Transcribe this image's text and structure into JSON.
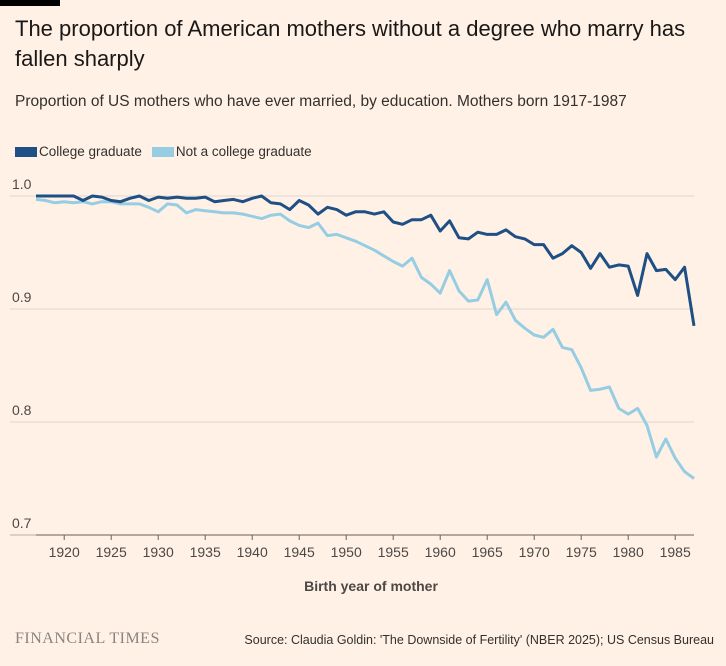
{
  "header": {
    "title": "The proportion of American mothers without a degree who marry has fallen sharply",
    "subtitle": "Proportion of US mothers who have ever married, by education. Mothers born 1917-1987"
  },
  "footer": {
    "brand": "FINANCIAL TIMES",
    "source": "Source: Claudia Goldin: 'The Downside of Fertility' (NBER 2025); US Census Bureau"
  },
  "colors": {
    "background": "#FFF1E5",
    "college": "#1E4F85",
    "noncollege": "#96CDE3",
    "grid": "#E0D6CF"
  },
  "chart_data": {
    "type": "line",
    "title": "The proportion of American mothers without a degree who marry has fallen sharply",
    "xlabel": "Birth year of mother",
    "ylabel": "",
    "xlim": [
      1917,
      1987
    ],
    "ylim": [
      0.7,
      1.0
    ],
    "xticks": [
      1920,
      1925,
      1930,
      1935,
      1940,
      1945,
      1950,
      1955,
      1960,
      1965,
      1970,
      1975,
      1980,
      1985
    ],
    "yticks": [
      0.7,
      0.8,
      0.9,
      1.0
    ],
    "ytick_labels": [
      "0.7",
      "0.8",
      "0.9",
      "1.0"
    ],
    "x": [
      1917,
      1918,
      1919,
      1920,
      1921,
      1922,
      1923,
      1924,
      1925,
      1926,
      1927,
      1928,
      1929,
      1930,
      1931,
      1932,
      1933,
      1934,
      1935,
      1936,
      1937,
      1938,
      1939,
      1940,
      1941,
      1942,
      1943,
      1944,
      1945,
      1946,
      1947,
      1948,
      1949,
      1950,
      1951,
      1952,
      1953,
      1954,
      1955,
      1956,
      1957,
      1958,
      1959,
      1960,
      1961,
      1962,
      1963,
      1964,
      1965,
      1966,
      1967,
      1968,
      1969,
      1970,
      1971,
      1972,
      1973,
      1974,
      1975,
      1976,
      1977,
      1978,
      1979,
      1980,
      1981,
      1982,
      1983,
      1984,
      1985,
      1986,
      1987
    ],
    "series": [
      {
        "name": "College graduate",
        "color": "#1E4F85",
        "values": [
          1.0,
          1.0,
          1.0,
          1.0,
          1.0,
          0.996,
          1.0,
          0.999,
          0.996,
          0.995,
          0.998,
          1.0,
          0.996,
          0.999,
          0.998,
          0.999,
          0.998,
          0.998,
          0.999,
          0.995,
          0.996,
          0.997,
          0.995,
          0.998,
          1.0,
          0.994,
          0.993,
          0.988,
          0.996,
          0.992,
          0.984,
          0.99,
          0.988,
          0.983,
          0.986,
          0.986,
          0.984,
          0.986,
          0.977,
          0.975,
          0.979,
          0.979,
          0.983,
          0.969,
          0.978,
          0.963,
          0.962,
          0.968,
          0.966,
          0.966,
          0.97,
          0.964,
          0.962,
          0.957,
          0.957,
          0.945,
          0.949,
          0.956,
          0.95,
          0.936,
          0.949,
          0.937,
          0.939,
          0.938,
          0.912,
          0.949,
          0.934,
          0.935,
          0.926,
          0.937,
          0.885
        ]
      },
      {
        "name": "Not a college graduate",
        "color": "#96CDE3",
        "values": [
          0.997,
          0.996,
          0.994,
          0.995,
          0.994,
          0.995,
          0.993,
          0.995,
          0.995,
          0.993,
          0.993,
          0.993,
          0.99,
          0.986,
          0.993,
          0.992,
          0.985,
          0.988,
          0.987,
          0.986,
          0.985,
          0.985,
          0.984,
          0.982,
          0.98,
          0.983,
          0.984,
          0.978,
          0.974,
          0.972,
          0.976,
          0.965,
          0.966,
          0.963,
          0.96,
          0.956,
          0.952,
          0.947,
          0.942,
          0.938,
          0.945,
          0.928,
          0.922,
          0.914,
          0.934,
          0.916,
          0.907,
          0.908,
          0.926,
          0.895,
          0.906,
          0.89,
          0.883,
          0.877,
          0.875,
          0.882,
          0.866,
          0.864,
          0.848,
          0.828,
          0.829,
          0.831,
          0.812,
          0.807,
          0.812,
          0.797,
          0.769,
          0.785,
          0.768,
          0.756,
          0.75
        ]
      }
    ],
    "legend_position": "top-left",
    "grid": true
  }
}
